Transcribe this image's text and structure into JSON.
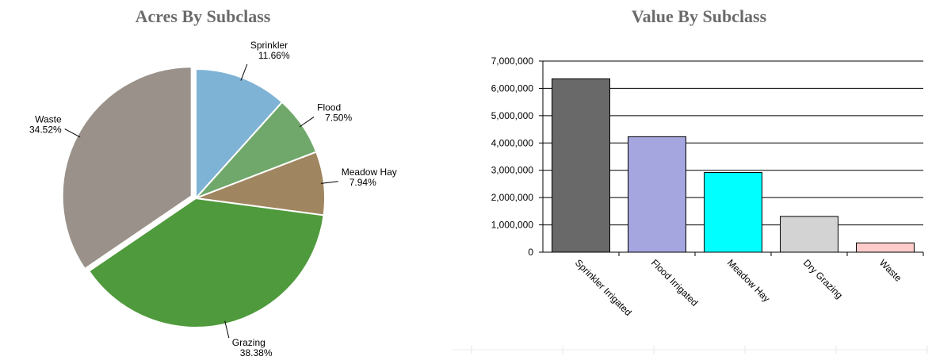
{
  "chart_data": [
    {
      "type": "pie",
      "title": "Acres By Subclass",
      "categories": [
        "Sprinkler",
        "Flood",
        "Meadow Hay",
        "Grazing",
        "Waste"
      ],
      "values": [
        11.66,
        7.5,
        7.94,
        38.38,
        34.52
      ],
      "value_labels": [
        "11.66%",
        "7.50%",
        "7.94%",
        "38.38%",
        "34.52%"
      ],
      "colors": [
        "#7fb3d5",
        "#6fa86a",
        "#a08660",
        "#4f9a3c",
        "#9a928a"
      ]
    },
    {
      "type": "bar",
      "title": "Value By Subclass",
      "categories": [
        "Sprinkler Irrigated",
        "Flood Irrigated",
        "Meadow Hay",
        "Dry Grazing",
        "Waste"
      ],
      "values": [
        6350000,
        4230000,
        2920000,
        1310000,
        340000
      ],
      "colors": [
        "#696969",
        "#a5a5e0",
        "#00ffff",
        "#d3d3d3",
        "#ffcccc"
      ],
      "ylim": [
        0,
        7000000
      ],
      "yticks": [
        0,
        {
          "value": 1000000,
          "label": "1,000,000"
        },
        {
          "value": 2000000,
          "label": "2,000,000"
        },
        {
          "value": 3000000,
          "label": "3,000,000"
        },
        {
          "value": 4000000,
          "label": "4,000,000"
        },
        {
          "value": 5000000,
          "label": "5,000,000"
        },
        {
          "value": 6000000,
          "label": "6,000,000"
        },
        {
          "value": 7000000,
          "label": "7,000,000"
        }
      ],
      "grid": true
    }
  ]
}
